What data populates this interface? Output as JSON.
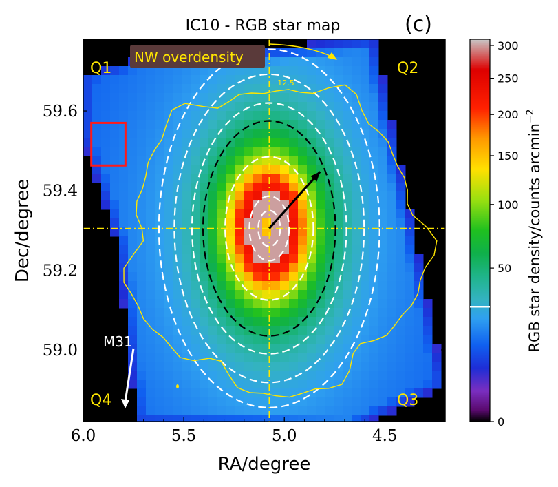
{
  "chart_data": {
    "type": "heatmap",
    "title": "IC10 - RGB star map",
    "panel_label": "(c)",
    "xlabel": "RA/degree",
    "ylabel": "Dec/degree",
    "xlim": [
      6.0,
      4.2
    ],
    "ylim": [
      58.82,
      59.78
    ],
    "x_ticks": [
      6.0,
      5.5,
      5.0,
      4.5
    ],
    "x_tick_labels": [
      "6.0",
      "5.5",
      "5.0",
      "4.5"
    ],
    "y_ticks": [
      59.0,
      59.2,
      59.4,
      59.6
    ],
    "y_tick_labels": [
      "59.0",
      "59.2",
      "59.4",
      "59.6"
    ],
    "center": {
      "ra": 5.075,
      "dec": 59.305
    },
    "colorbar": {
      "label": "RGB star density/counts arcmin",
      "label_exponent": "−2",
      "ticks": [
        0,
        50,
        100,
        150,
        200,
        250,
        300
      ],
      "tick_labels": [
        "0",
        "50",
        "100",
        "150",
        "200",
        "250",
        "300"
      ],
      "max": 310,
      "marker_value": 28,
      "stops": [
        "#000000",
        "#5a0a6e",
        "#7a2ec0",
        "#1e2ed6",
        "#1060f0",
        "#2fa0f0",
        "#33b3c0",
        "#1fb48a",
        "#0fb04a",
        "#1fc01f",
        "#9ae010",
        "#ffe000",
        "#ff9900",
        "#ff2000",
        "#dd0000",
        "#c8c8c8"
      ]
    },
    "quadrant_labels": [
      "Q1",
      "Q2",
      "Q3",
      "Q4"
    ],
    "annotations": {
      "overdensity_label": "NW overdensity",
      "contour_level": "12.5",
      "m31_label": "M31"
    },
    "ellipse_radii_deg": [
      0.05,
      0.09,
      0.2,
      0.3,
      0.35,
      0.43,
      0.5
    ],
    "reference_box": {
      "ra": [
        5.96,
        5.79
      ],
      "dec": [
        59.463,
        59.57
      ]
    }
  },
  "colors": {
    "title": "#000000",
    "accent_yellow": "#ffe600",
    "box_red": "#ff1a1a",
    "label_box": "#5a3a3a",
    "panel_bg": "#000000"
  }
}
